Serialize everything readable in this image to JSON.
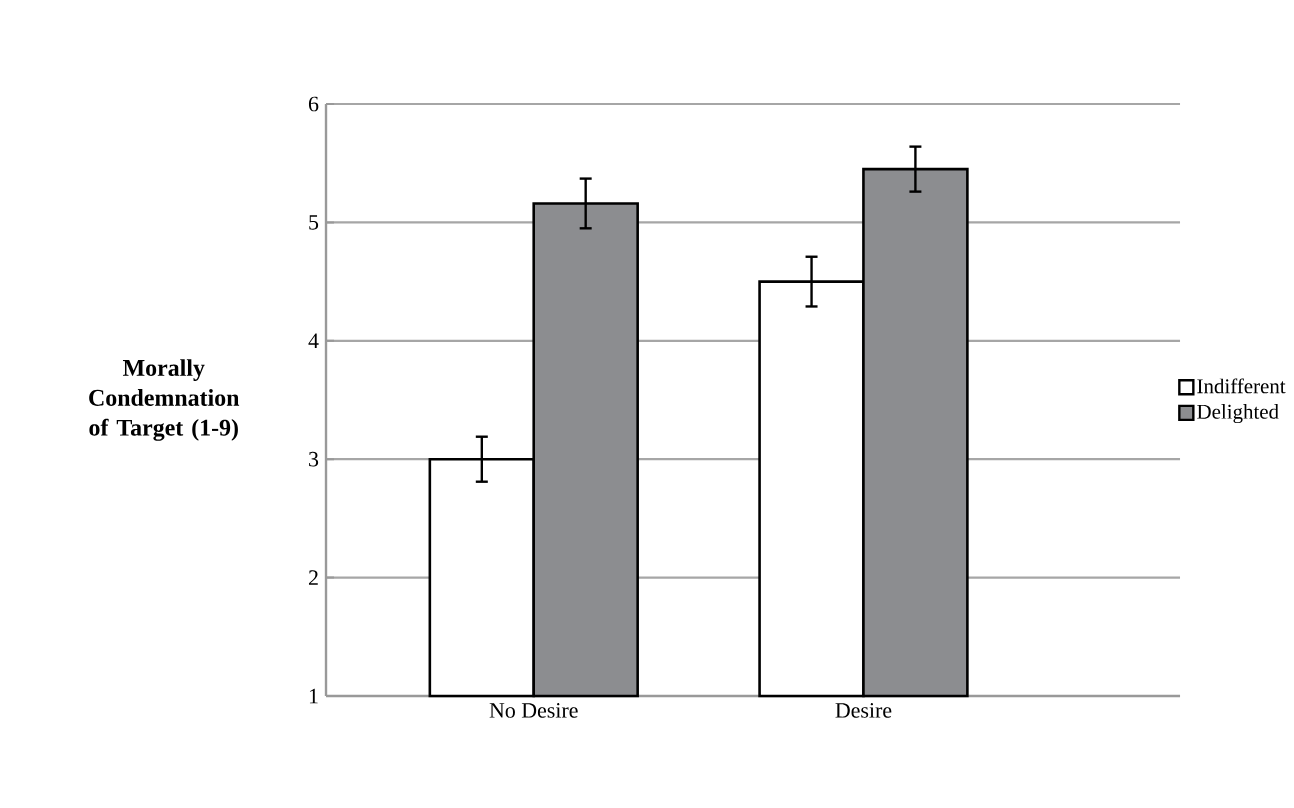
{
  "chart_data": {
    "type": "bar",
    "ylabel": "Morally Condemnation of Target (1-9)",
    "categories": [
      "No Desire",
      "Desire"
    ],
    "series": [
      {
        "name": "Indifferent",
        "color": "#ffffff",
        "values": [
          3.0,
          4.5
        ],
        "errors": [
          0.19,
          0.21
        ]
      },
      {
        "name": "Delighted",
        "color": "#8c8d90",
        "values": [
          5.16,
          5.45
        ],
        "errors": [
          0.21,
          0.19
        ]
      }
    ],
    "ylim": [
      1,
      6
    ],
    "yticks": [
      1,
      2,
      3,
      4,
      5,
      6
    ],
    "grid": "y",
    "legend": "right"
  }
}
